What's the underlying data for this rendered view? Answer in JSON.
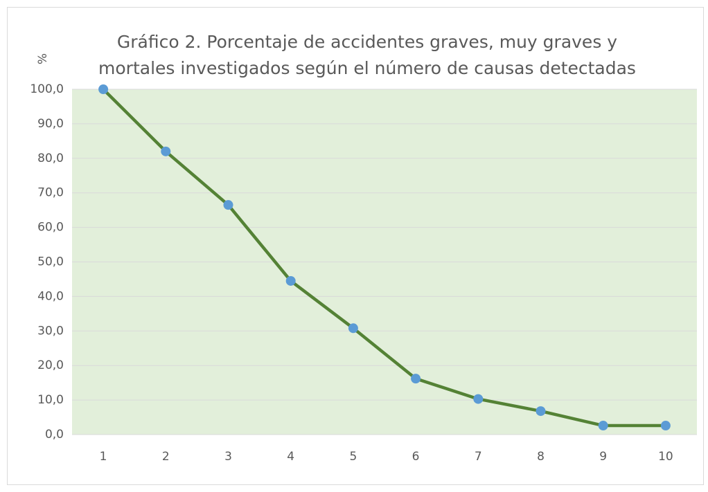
{
  "chart_data": {
    "type": "line",
    "title": [
      "Gráfico 2. Porcentaje de accidentes  graves, muy graves y",
      "mortales investigados según el número de causas detectadas"
    ],
    "y_label": "%",
    "categories": [
      "1",
      "2",
      "3",
      "4",
      "5",
      "6",
      "7",
      "8",
      "9",
      "10"
    ],
    "series": [
      {
        "color": "#548235",
        "marker_color": "#5b9bd5",
        "values": [
          100,
          82.0,
          66.5,
          44.5,
          30.8,
          16.2,
          10.3,
          6.8,
          2.6,
          2.6
        ]
      }
    ],
    "ylim": [
      0,
      100
    ],
    "yticks": [
      {
        "value": 0,
        "label": "0,0"
      },
      {
        "value": 10,
        "label": "10,0"
      },
      {
        "value": 20,
        "label": "20,0"
      },
      {
        "value": 30,
        "label": "30,0"
      },
      {
        "value": 40,
        "label": "40,0"
      },
      {
        "value": 50,
        "label": "50,0"
      },
      {
        "value": 60,
        "label": "60,0"
      },
      {
        "value": 70,
        "label": "70,0"
      },
      {
        "value": 80,
        "label": "80,0"
      },
      {
        "value": 90,
        "label": "90,0"
      },
      {
        "value": 100,
        "label": "100,0"
      }
    ],
    "grid": true,
    "plot_background": "#e2efda"
  }
}
